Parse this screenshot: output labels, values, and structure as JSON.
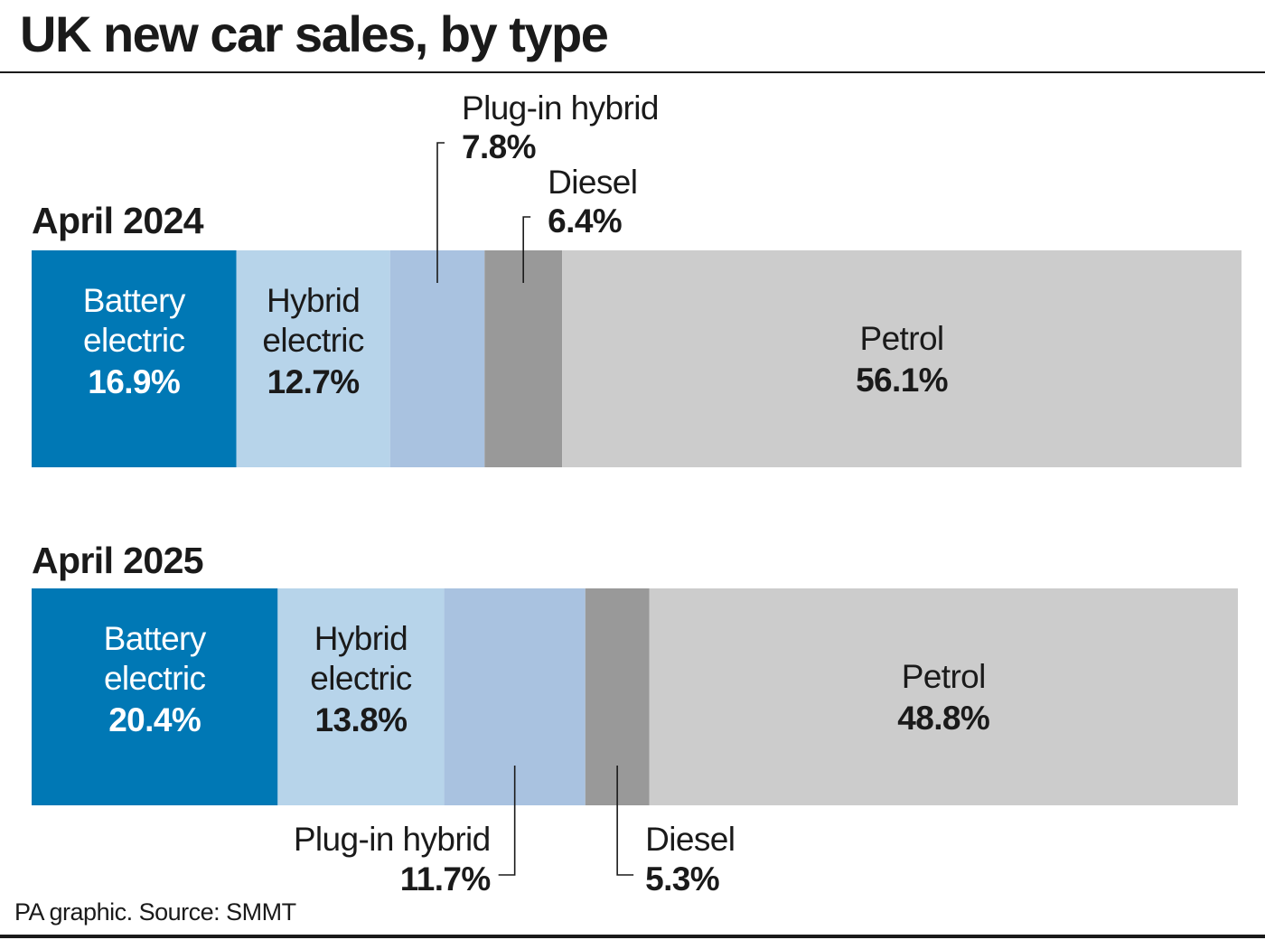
{
  "title": "UK new car sales, by type",
  "source": "PA graphic. Source: SMMT",
  "colors": {
    "battery_electric": "#0078b5",
    "hybrid_electric": "#b7d4ea",
    "plug_in_hybrid": "#a9c2e0",
    "diesel": "#999999",
    "petrol": "#cccccc"
  },
  "chart_data": {
    "type": "bar",
    "orientation": "horizontal",
    "stacked": true,
    "unit": "%",
    "categories": [
      "April 2024",
      "April 2025"
    ],
    "series": [
      {
        "name": "Battery electric",
        "values": [
          16.9,
          20.4
        ],
        "labels": [
          "16.9%",
          "20.4%"
        ]
      },
      {
        "name": "Hybrid electric",
        "values": [
          12.7,
          13.8
        ],
        "labels": [
          "12.7%",
          "13.8%"
        ]
      },
      {
        "name": "Plug-in hybrid",
        "values": [
          7.8,
          11.7
        ],
        "labels": [
          "7.8%",
          "11.7%"
        ]
      },
      {
        "name": "Diesel",
        "values": [
          6.4,
          5.3
        ],
        "labels": [
          "6.4%",
          "5.3%"
        ]
      },
      {
        "name": "Petrol",
        "values": [
          56.1,
          48.8
        ],
        "labels": [
          "56.1%",
          "48.8%"
        ]
      }
    ]
  }
}
